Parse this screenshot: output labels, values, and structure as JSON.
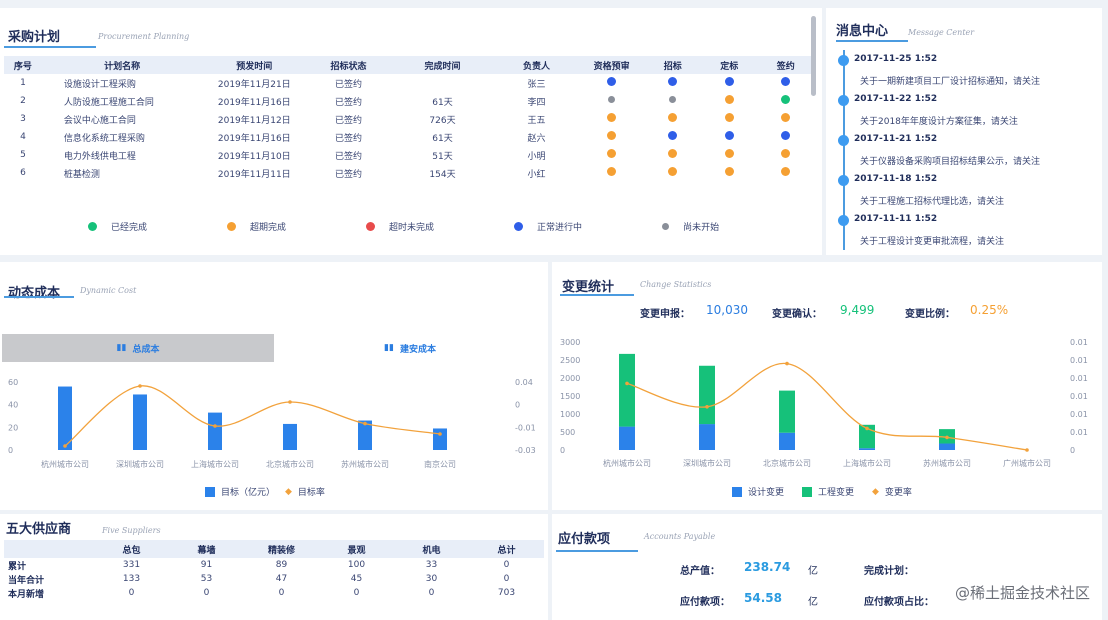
{
  "procurement": {
    "title": "采购计划",
    "subtitle": "Procurement Planning",
    "columns": [
      "序号",
      "计划名称",
      "预发时间",
      "招标状态",
      "完成时间",
      "负责人",
      "资格预审",
      "招标",
      "定标",
      "签约"
    ],
    "rows": [
      {
        "no": "1",
        "name": "设施设计工程采购",
        "date": "2019年11月21日",
        "status": "已签约",
        "done": "",
        "owner": "张三",
        "dots": [
          "#2f5ee8",
          "#2f5ee8",
          "#2f5ee8",
          "#2f5ee8"
        ]
      },
      {
        "no": "2",
        "name": "人防设施工程施工合同",
        "date": "2019年11月16日",
        "status": "已签约",
        "done": "61天",
        "owner": "李四",
        "dots": [
          "#8a8f99",
          "#8a8f99",
          "#f5a033",
          "#16c17a"
        ]
      },
      {
        "no": "3",
        "name": "会议中心施工合同",
        "date": "2019年11月12日",
        "status": "已签约",
        "done": "726天",
        "owner": "王五",
        "dots": [
          "#f5a033",
          "#f5a033",
          "#f5a033",
          "#f5a033"
        ]
      },
      {
        "no": "4",
        "name": "信息化系统工程采购",
        "date": "2019年11月16日",
        "status": "已签约",
        "done": "61天",
        "owner": "赵六",
        "dots": [
          "#f5a033",
          "#2f5ee8",
          "#2f5ee8",
          "#2f5ee8"
        ]
      },
      {
        "no": "5",
        "name": "电力外线供电工程",
        "date": "2019年11月10日",
        "status": "已签约",
        "done": "51天",
        "owner": "小明",
        "dots": [
          "#f5a033",
          "#f5a033",
          "#f5a033",
          "#f5a033"
        ]
      },
      {
        "no": "6",
        "name": "桩基检测",
        "date": "2019年11月11日",
        "status": "已签约",
        "done": "154天",
        "owner": "小红",
        "dots": [
          "#f5a033",
          "#f5a033",
          "#f5a033",
          "#f5a033"
        ]
      }
    ],
    "legend": [
      {
        "label": "已经完成",
        "color": "#16c17a"
      },
      {
        "label": "超期完成",
        "color": "#f5a033"
      },
      {
        "label": "超时未完成",
        "color": "#e84b4b"
      },
      {
        "label": "正常进行中",
        "color": "#2f5ee8"
      },
      {
        "label": "尚未开始",
        "color": "#8a8f99"
      }
    ]
  },
  "messages": {
    "title": "消息中心",
    "subtitle": "Message Center",
    "items": [
      {
        "time": "2017-11-25 1:52",
        "text": "关于一期新建项目工厂设计招标通知，请关注"
      },
      {
        "time": "2017-11-22 1:52",
        "text": "关于2018年年度设计方案征集，请关注"
      },
      {
        "time": "2017-11-21 1:52",
        "text": "关于仪器设备采购项目招标结果公示，请关注"
      },
      {
        "time": "2017-11-18 1:52",
        "text": "关于工程施工招标代理比选，请关注"
      },
      {
        "time": "2017-11-11 1:52",
        "text": "关于工程设计变更审批流程，请关注"
      }
    ]
  },
  "dynamic_cost": {
    "title": "动态成本",
    "subtitle": "Dynamic Cost",
    "tabs": [
      {
        "label": "总成本",
        "active": true
      },
      {
        "label": "建安成本",
        "active": false
      }
    ],
    "legend": [
      "目标（亿元）",
      "目标率"
    ]
  },
  "change_stats": {
    "title": "变更统计",
    "subtitle": "Change Statistics",
    "kpis": [
      {
        "label": "变更申报：",
        "value": "10,030",
        "color": "#2b7de0"
      },
      {
        "label": "变更确认：",
        "value": "9,499",
        "color": "#16c17a"
      },
      {
        "label": "变更比例：",
        "value": "0.25%",
        "color": "#f5a033"
      }
    ],
    "legend": [
      "设计变更",
      "工程变更",
      "变更率"
    ]
  },
  "suppliers": {
    "title": "五大供应商",
    "subtitle": "Five Suppliers",
    "columns": [
      "",
      "总包",
      "幕墙",
      "精装修",
      "景观",
      "机电",
      "总计"
    ],
    "rows": [
      {
        "label": "累计",
        "values": [
          "331",
          "91",
          "89",
          "100",
          "33",
          "0"
        ]
      },
      {
        "label": "当年合计",
        "values": [
          "133",
          "53",
          "47",
          "45",
          "30",
          "0"
        ]
      },
      {
        "label": "本月新增",
        "values": [
          "0",
          "0",
          "0",
          "0",
          "0",
          "703"
        ]
      }
    ]
  },
  "payable": {
    "title": "应付款项",
    "subtitle": "Accounts Payable",
    "items": [
      {
        "label": "总产值：",
        "value": "238.74",
        "unit": "亿"
      },
      {
        "label": "应付款项：",
        "value": "54.58",
        "unit": "亿"
      }
    ],
    "right_labels": [
      "完成计划：",
      "应付款项占比："
    ]
  },
  "watermark": "@稀土掘金技术社区",
  "chart_data": [
    {
      "type": "bar",
      "title": "动态成本 - 总成本",
      "categories": [
        "杭州城市公司",
        "深圳城市公司",
        "上海城市公司",
        "北京城市公司",
        "苏州城市公司",
        "南京公司"
      ],
      "series": [
        {
          "name": "目标（亿元）",
          "type": "bar",
          "axis": "left",
          "values": [
            56,
            49,
            33,
            23,
            26,
            19
          ]
        },
        {
          "name": "目标率",
          "type": "line",
          "axis": "right",
          "values": [
            -0.03,
            0.045,
            -0.005,
            0.025,
            -0.002,
            -0.015
          ]
        }
      ],
      "y_left": {
        "ticks": [
          "0",
          "20",
          "40",
          "60"
        ],
        "range": [
          0,
          60
        ]
      },
      "y_right": {
        "ticks": [
          "-0.03",
          "-0.01",
          "0",
          "0.04"
        ]
      },
      "legend_position": "bottom"
    },
    {
      "type": "bar",
      "title": "变更统计",
      "categories": [
        "杭州城市公司",
        "深圳城市公司",
        "北京城市公司",
        "上海城市公司",
        "苏州城市公司",
        "广州城市公司"
      ],
      "series": [
        {
          "name": "设计变更",
          "type": "bar",
          "stack": "a",
          "axis": "left",
          "values": [
            650,
            720,
            480,
            50,
            180,
            0
          ]
        },
        {
          "name": "工程变更",
          "type": "bar",
          "stack": "a",
          "axis": "left",
          "values": [
            2020,
            1620,
            1170,
            650,
            400,
            0
          ]
        },
        {
          "name": "变更率",
          "type": "line",
          "axis": "right",
          "values": [
            0.0185,
            0.012,
            0.024,
            0.006,
            0.0035,
            0.0
          ]
        }
      ],
      "y_left": {
        "ticks": [
          "0",
          "500",
          "1000",
          "1500",
          "2000",
          "2500",
          "3000"
        ],
        "range": [
          0,
          3000
        ]
      },
      "y_right": {
        "ticks": [
          "0",
          "0.01",
          "0.01",
          "0.01",
          "0.01",
          "0.01",
          "0.01"
        ]
      },
      "legend_position": "bottom"
    }
  ]
}
